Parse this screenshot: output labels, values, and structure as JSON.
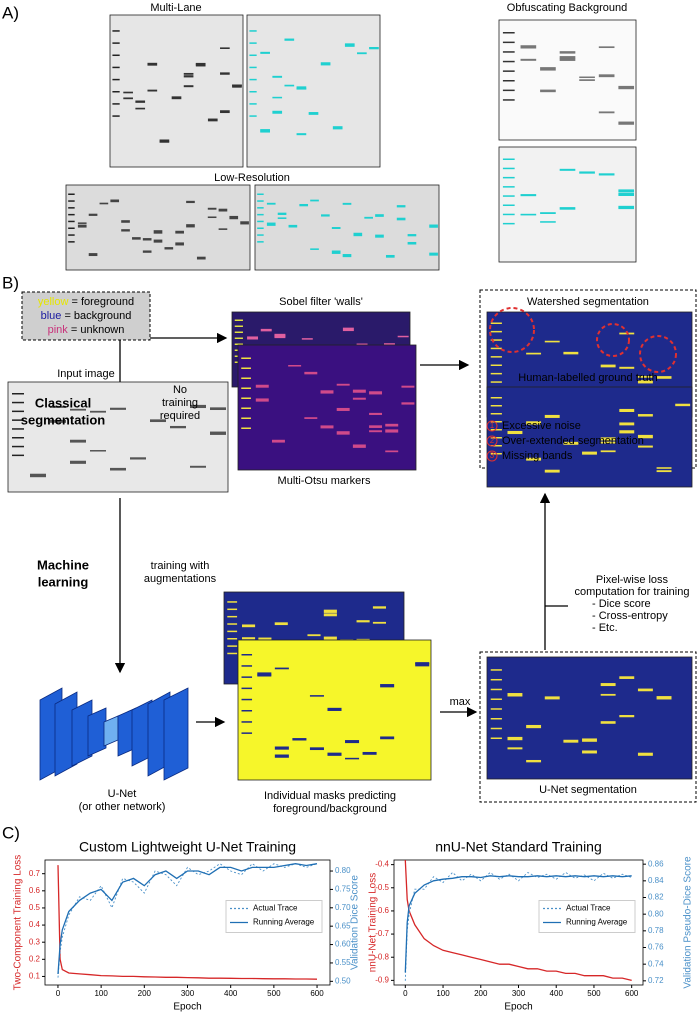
{
  "panel_a": {
    "label": "A)",
    "multi_lane": "Multi-Lane",
    "low_resolution": "Low-Resolution",
    "obfuscating_background": "Obfuscating Background"
  },
  "panel_b": {
    "label": "B)",
    "legend": [
      {
        "word": "yellow",
        "meaning": "= foreground",
        "color": "#e6e600"
      },
      {
        "word": "blue",
        "meaning": "= background",
        "color": "#1a1aa0"
      },
      {
        "word": "pink",
        "meaning": "= unknown",
        "color": "#c8327a"
      }
    ],
    "sobel": "Sobel filter 'walls'",
    "multi_otsu": "Multi-Otsu markers",
    "classical_segmentation": [
      "Classical",
      "segmentation"
    ],
    "no_training": [
      "No",
      "training",
      "required"
    ],
    "watershed": "Watershed segmentation",
    "issues": [
      {
        "num": "1",
        "text": "Excessive noise"
      },
      {
        "num": "2",
        "text": "Over-extended segmentation"
      },
      {
        "num": "3",
        "text": "Missing bands"
      }
    ],
    "input_image": "Input image",
    "ground_truth": "Human-labelled ground truth",
    "machine_learning": [
      "Machine",
      "learning"
    ],
    "augmentations": [
      "training with",
      "augmentations"
    ],
    "unet": [
      "U-Net",
      "(or other network)"
    ],
    "masks": [
      "Individual masks predicting",
      "foreground/background"
    ],
    "max": "max",
    "loss": [
      "Pixel-wise loss",
      "computation for training",
      "- Dice score",
      "- Cross-entropy",
      "- Etc."
    ],
    "unet_segmentation": "U-Net segmentation"
  },
  "panel_c": {
    "label": "C)"
  },
  "chart_data": [
    {
      "type": "line",
      "title": "Custom Lightweight U-Net Training",
      "x_label": "Epoch",
      "y_label": "Two-Component Training Loss",
      "y2_label": "Validation Dice Score",
      "x": [
        0,
        5,
        10,
        25,
        50,
        75,
        100,
        125,
        150,
        175,
        200,
        225,
        250,
        275,
        300,
        325,
        350,
        375,
        400,
        425,
        450,
        475,
        500,
        525,
        550,
        575,
        600
      ],
      "xlim": [
        -30,
        630
      ],
      "xticks": [
        0,
        100,
        200,
        300,
        400,
        500,
        600
      ],
      "ylim": [
        0.05,
        0.78
      ],
      "yticks": [
        0.1,
        0.2,
        0.3,
        0.4,
        0.5,
        0.6,
        0.7
      ],
      "y2lim": [
        0.49,
        0.83
      ],
      "y2ticks": [
        {
          "value": 0.5,
          "label": "0.50"
        },
        0.55,
        {
          "value": 0.6,
          "label": "0.60"
        },
        0.65,
        {
          "value": 0.7,
          "label": "0.70"
        },
        0.75,
        {
          "value": 0.8,
          "label": "0.80"
        }
      ],
      "legend_position": "center right",
      "series": [
        {
          "color": "#d62728",
          "values": [
            0.75,
            0.2,
            0.14,
            0.12,
            0.115,
            0.11,
            0.105,
            0.103,
            0.1,
            0.1,
            0.098,
            0.097,
            0.095,
            0.095,
            0.093,
            0.092,
            0.09,
            0.09,
            0.089,
            0.088,
            0.088,
            0.087,
            0.086,
            0.086,
            0.085,
            0.085,
            0.084
          ]
        },
        {
          "name": "Actual Trace",
          "color": "#4a90c8",
          "axis": "y2",
          "style": "dotted",
          "values": [
            0.51,
            0.58,
            0.62,
            0.68,
            0.73,
            0.72,
            0.76,
            0.7,
            0.78,
            0.77,
            0.74,
            0.8,
            0.79,
            0.76,
            0.81,
            0.79,
            0.8,
            0.82,
            0.8,
            0.79,
            0.82,
            0.8,
            0.82,
            0.81,
            0.82,
            0.81,
            0.82
          ]
        },
        {
          "name": "Running Average",
          "color": "#1f6fb4",
          "axis": "y2",
          "style": "solid",
          "values": [
            0.52,
            0.6,
            0.64,
            0.69,
            0.72,
            0.74,
            0.75,
            0.72,
            0.77,
            0.78,
            0.76,
            0.79,
            0.8,
            0.78,
            0.8,
            0.8,
            0.79,
            0.81,
            0.81,
            0.8,
            0.81,
            0.81,
            0.81,
            0.815,
            0.82,
            0.815,
            0.82
          ]
        }
      ]
    },
    {
      "type": "line",
      "title": "nnU-Net Standard Training",
      "x_label": "Epoch",
      "y_label": "nnU-Net Training Loss",
      "y2_label": "Validation Pseudo-Dice Score",
      "x": [
        0,
        5,
        10,
        25,
        50,
        75,
        100,
        125,
        150,
        175,
        200,
        225,
        250,
        275,
        300,
        325,
        350,
        375,
        400,
        425,
        450,
        475,
        500,
        525,
        550,
        575,
        600
      ],
      "xlim": [
        -30,
        630
      ],
      "xticks": [
        0,
        100,
        200,
        300,
        400,
        500,
        600
      ],
      "ylim": [
        -0.92,
        -0.38
      ],
      "yticks": [
        -0.4,
        -0.5,
        -0.6,
        -0.7,
        -0.8,
        -0.9
      ],
      "y2lim": [
        0.715,
        0.865
      ],
      "y2ticks": [
        0.72,
        0.74,
        0.76,
        0.78,
        {
          "value": 0.8,
          "label": "0.80"
        },
        0.82,
        0.84,
        0.86
      ],
      "legend_position": "center right",
      "series": [
        {
          "color": "#d62728",
          "values": [
            -0.38,
            -0.55,
            -0.6,
            -0.66,
            -0.72,
            -0.75,
            -0.77,
            -0.78,
            -0.79,
            -0.8,
            -0.81,
            -0.82,
            -0.83,
            -0.83,
            -0.84,
            -0.85,
            -0.85,
            -0.86,
            -0.86,
            -0.87,
            -0.87,
            -0.88,
            -0.88,
            -0.88,
            -0.89,
            -0.89,
            -0.9
          ]
        },
        {
          "name": "Actual Trace",
          "color": "#4a90c8",
          "axis": "y2",
          "style": "dotted",
          "values": [
            0.72,
            0.78,
            0.8,
            0.83,
            0.83,
            0.845,
            0.838,
            0.85,
            0.84,
            0.848,
            0.84,
            0.85,
            0.842,
            0.848,
            0.84,
            0.85,
            0.844,
            0.848,
            0.842,
            0.85,
            0.843,
            0.847,
            0.84,
            0.849,
            0.843,
            0.848,
            0.844
          ]
        },
        {
          "name": "Running Average",
          "color": "#1f6fb4",
          "axis": "y2",
          "style": "solid",
          "values": [
            0.73,
            0.79,
            0.81,
            0.825,
            0.835,
            0.84,
            0.842,
            0.843,
            0.845,
            0.845,
            0.844,
            0.846,
            0.845,
            0.846,
            0.845,
            0.845,
            0.846,
            0.845,
            0.846,
            0.845,
            0.846,
            0.845,
            0.846,
            0.845,
            0.846,
            0.845,
            0.846
          ]
        }
      ]
    }
  ]
}
